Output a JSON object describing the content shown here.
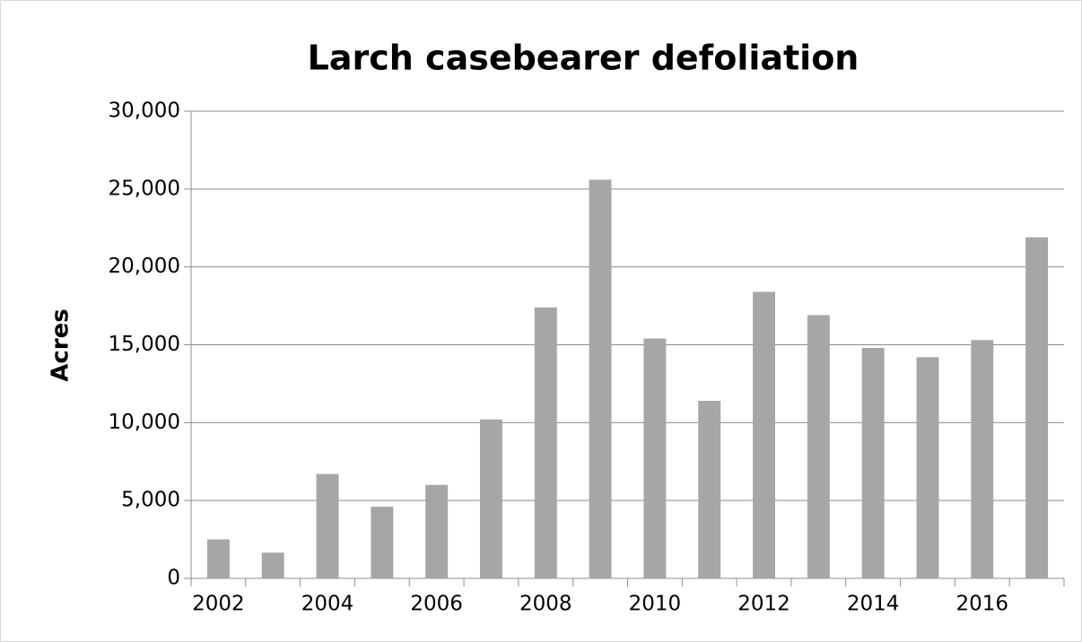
{
  "chart_data": {
    "type": "bar",
    "title": "Larch casebearer defoliation",
    "y_label": "Acres",
    "categories": [
      "2002",
      null,
      "2004",
      null,
      "2006",
      null,
      "2008",
      null,
      "2010",
      null,
      "2012",
      null,
      "2014",
      null,
      "2016",
      null
    ],
    "values": [
      2500,
      1650,
      6700,
      4600,
      6000,
      10200,
      17400,
      25600,
      15400,
      11400,
      18400,
      16900,
      14800,
      14200,
      15300,
      21900
    ],
    "color": "#a6a6a6",
    "ylim": [
      0,
      30000
    ],
    "yticks": [
      0,
      {
        "value": 5000,
        "label": "5,000"
      },
      {
        "value": 10000,
        "label": "10,000"
      },
      {
        "value": 15000,
        "label": "15,000"
      },
      {
        "value": 20000,
        "label": "20,000"
      },
      {
        "value": 25000,
        "label": "25,000"
      },
      {
        "value": 30000,
        "label": "30,000"
      }
    ],
    "grid": true
  }
}
